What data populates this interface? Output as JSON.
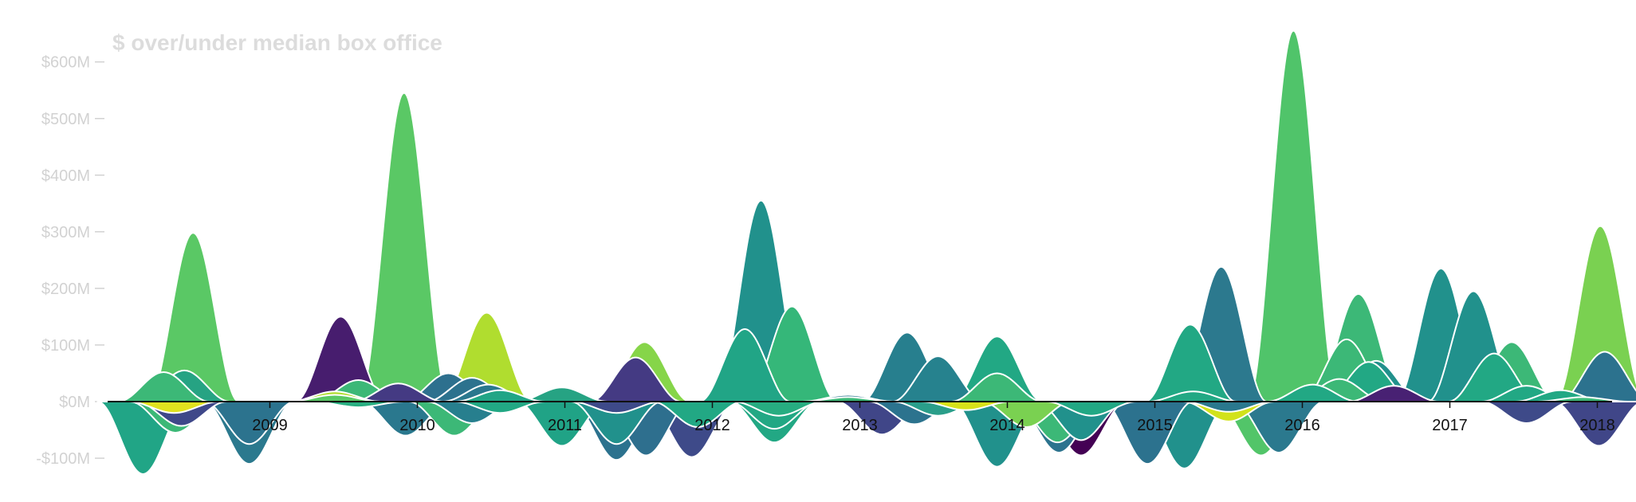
{
  "chart_data": {
    "type": "area",
    "title": "$ over/under median box office",
    "xlabel": "",
    "ylabel": "",
    "ylim": [
      -150,
      650
    ],
    "xlim": [
      2007.9,
      2018.1
    ],
    "y_ticks": [
      {
        "value": -100,
        "label": "-$100M"
      },
      {
        "value": 0,
        "label": "$0M"
      },
      {
        "value": 100,
        "label": "$100M"
      },
      {
        "value": 200,
        "label": "$200M"
      },
      {
        "value": 300,
        "label": "$300M"
      },
      {
        "value": 400,
        "label": "$400M"
      },
      {
        "value": 500,
        "label": "$500M"
      },
      {
        "value": 600,
        "label": "$600M"
      }
    ],
    "x_ticks": [
      {
        "value": 2009,
        "label": "2009"
      },
      {
        "value": 2010,
        "label": "2010"
      },
      {
        "value": 2011,
        "label": "2011"
      },
      {
        "value": 2012,
        "label": "2012"
      },
      {
        "value": 2013,
        "label": "2013"
      },
      {
        "value": 2014,
        "label": "2014"
      },
      {
        "value": 2015,
        "label": "2015"
      },
      {
        "value": 2016,
        "label": "2016"
      },
      {
        "value": 2017,
        "label": "2017"
      },
      {
        "value": 2018,
        "label": "2018"
      }
    ],
    "grid": false,
    "legend": "none",
    "films": [
      {
        "date": 2008.28,
        "value": 52,
        "color": "#3cb877"
      },
      {
        "date": 2008.35,
        "value": -20,
        "color": "#e1e21f"
      },
      {
        "date": 2008.36,
        "value": -55,
        "color": "#3cb877"
      },
      {
        "date": 2008.48,
        "value": 298,
        "color": "#5ac865"
      },
      {
        "date": 2008.42,
        "value": 55,
        "color": "#26a383"
      },
      {
        "date": 2008.4,
        "value": -43,
        "color": "#3f4889"
      },
      {
        "date": 2008.14,
        "value": -128,
        "color": "#21a586"
      },
      {
        "date": 2008.86,
        "value": -110,
        "color": "#2b798e"
      },
      {
        "date": 2008.86,
        "value": -75,
        "color": "#2c738e"
      },
      {
        "date": 2009.44,
        "value": 12,
        "color": "#5ac865"
      },
      {
        "date": 2009.44,
        "value": 18,
        "color": "#b0dd2f"
      },
      {
        "date": 2009.48,
        "value": 150,
        "color": "#471d6e"
      },
      {
        "date": 2009.6,
        "value": 38,
        "color": "#3cb877"
      },
      {
        "date": 2009.6,
        "value": -10,
        "color": "#28ae80"
      },
      {
        "date": 2009.87,
        "value": 32,
        "color": "#443a83"
      },
      {
        "date": 2009.91,
        "value": 545,
        "color": "#5ac865"
      },
      {
        "date": 2009.92,
        "value": -60,
        "color": "#2a788e"
      },
      {
        "date": 2010.21,
        "value": 50,
        "color": "#2d708e"
      },
      {
        "date": 2010.25,
        "value": -60,
        "color": "#3cb877"
      },
      {
        "date": 2010.37,
        "value": 42,
        "color": "#2c728e"
      },
      {
        "date": 2010.37,
        "value": -38,
        "color": "#277f8e"
      },
      {
        "date": 2010.47,
        "value": 157,
        "color": "#b0dd2f"
      },
      {
        "date": 2010.48,
        "value": 30,
        "color": "#2a788e"
      },
      {
        "date": 2010.56,
        "value": 20,
        "color": "#21a586"
      },
      {
        "date": 2010.56,
        "value": -20,
        "color": "#22a884"
      },
      {
        "date": 2010.98,
        "value": 25,
        "color": "#26a383"
      },
      {
        "date": 2010.98,
        "value": -78,
        "color": "#20a386"
      },
      {
        "date": 2011.35,
        "value": -103,
        "color": "#2c728e"
      },
      {
        "date": 2011.35,
        "value": -75,
        "color": "#21918c"
      },
      {
        "date": 2011.35,
        "value": -20,
        "color": "#3e4a89"
      },
      {
        "date": 2011.48,
        "value": 78,
        "color": "#443a83"
      },
      {
        "date": 2011.54,
        "value": 105,
        "color": "#86d549"
      },
      {
        "date": 2011.55,
        "value": -95,
        "color": "#2e6f8e"
      },
      {
        "date": 2011.86,
        "value": -98,
        "color": "#3e4a89"
      },
      {
        "date": 2011.9,
        "value": -45,
        "color": "#22a884"
      },
      {
        "date": 2012.22,
        "value": 128,
        "color": "#21a586"
      },
      {
        "date": 2012.33,
        "value": 355,
        "color": "#21918c"
      },
      {
        "date": 2012.42,
        "value": -72,
        "color": "#22a884"
      },
      {
        "date": 2012.42,
        "value": -48,
        "color": "#22a884"
      },
      {
        "date": 2012.45,
        "value": -25,
        "color": "#27ad81"
      },
      {
        "date": 2012.54,
        "value": 168,
        "color": "#35b779"
      },
      {
        "date": 2012.92,
        "value": 12,
        "color": "#2a788e"
      },
      {
        "date": 2012.92,
        "value": 8,
        "color": "#3cb877"
      },
      {
        "date": 2013.15,
        "value": -58,
        "color": "#404688"
      },
      {
        "date": 2013.32,
        "value": 122,
        "color": "#277f8e"
      },
      {
        "date": 2013.37,
        "value": -40,
        "color": "#2c738e"
      },
      {
        "date": 2013.53,
        "value": 80,
        "color": "#26828e"
      },
      {
        "date": 2013.53,
        "value": -25,
        "color": "#2a9e8a"
      },
      {
        "date": 2013.72,
        "value": -15,
        "color": "#d8e219"
      },
      {
        "date": 2013.93,
        "value": 115,
        "color": "#22a884"
      },
      {
        "date": 2013.93,
        "value": 50,
        "color": "#3cb877"
      },
      {
        "date": 2013.93,
        "value": -115,
        "color": "#21918c"
      },
      {
        "date": 2014.13,
        "value": -45,
        "color": "#7ad151"
      },
      {
        "date": 2014.34,
        "value": -72,
        "color": "#3cb877"
      },
      {
        "date": 2014.35,
        "value": -90,
        "color": "#2c738e"
      },
      {
        "date": 2014.5,
        "value": -95,
        "color": "#440154"
      },
      {
        "date": 2014.5,
        "value": -68,
        "color": "#21918c"
      },
      {
        "date": 2014.57,
        "value": -25,
        "color": "#22a884"
      },
      {
        "date": 2014.95,
        "value": -110,
        "color": "#2c728e"
      },
      {
        "date": 2015.2,
        "value": -118,
        "color": "#21918c"
      },
      {
        "date": 2015.24,
        "value": 136,
        "color": "#22a884"
      },
      {
        "date": 2015.26,
        "value": 18,
        "color": "#22a884"
      },
      {
        "date": 2015.45,
        "value": 238,
        "color": "#2c798e"
      },
      {
        "date": 2015.5,
        "value": -35,
        "color": "#d2e21b"
      },
      {
        "date": 2015.5,
        "value": -18,
        "color": "#2a788e"
      },
      {
        "date": 2015.72,
        "value": -95,
        "color": "#52c569"
      },
      {
        "date": 2015.84,
        "value": -90,
        "color": "#2b798e"
      },
      {
        "date": 2015.94,
        "value": 655,
        "color": "#50c46a"
      },
      {
        "date": 2016.07,
        "value": 30,
        "color": "#22a884"
      },
      {
        "date": 2016.25,
        "value": 40,
        "color": "#3cb877"
      },
      {
        "date": 2016.3,
        "value": 110,
        "color": "#3cb877"
      },
      {
        "date": 2016.38,
        "value": 190,
        "color": "#3cb877"
      },
      {
        "date": 2016.45,
        "value": 70,
        "color": "#22a884"
      },
      {
        "date": 2016.5,
        "value": 72,
        "color": "#21918c"
      },
      {
        "date": 2016.62,
        "value": 28,
        "color": "#482173"
      },
      {
        "date": 2016.94,
        "value": 235,
        "color": "#21918c"
      },
      {
        "date": 2017.16,
        "value": 195,
        "color": "#21918c"
      },
      {
        "date": 2017.3,
        "value": 85,
        "color": "#22a884"
      },
      {
        "date": 2017.42,
        "value": 105,
        "color": "#3cb877"
      },
      {
        "date": 2017.52,
        "value": 28,
        "color": "#22a884"
      },
      {
        "date": 2017.52,
        "value": -38,
        "color": "#3e4a89"
      },
      {
        "date": 2017.75,
        "value": 20,
        "color": "#22a884"
      },
      {
        "date": 2018.02,
        "value": 310,
        "color": "#7ad151"
      },
      {
        "date": 2018.05,
        "value": 88,
        "color": "#2c728e"
      },
      {
        "date": 2018.01,
        "value": -78,
        "color": "#404688"
      },
      {
        "date": 2017.9,
        "value": 8,
        "color": "#3cb877"
      }
    ]
  }
}
